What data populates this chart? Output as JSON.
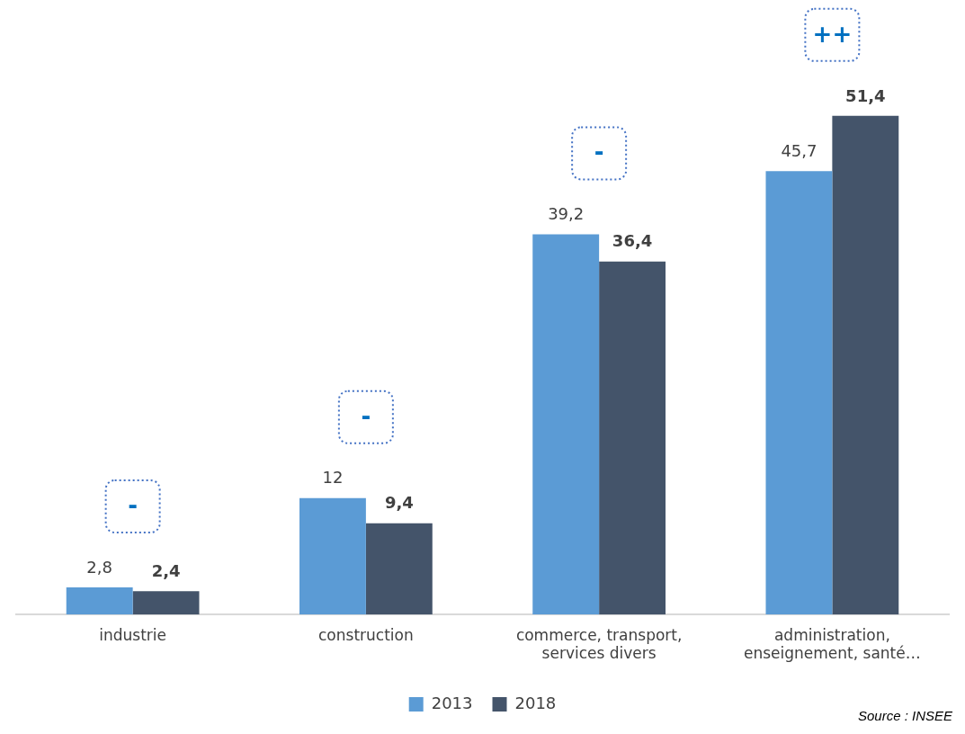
{
  "chart_data": {
    "type": "bar",
    "categories": [
      "industrie",
      "construction",
      "commerce, transport, services divers",
      "administration, enseignement, santé…"
    ],
    "series": [
      {
        "name": "2013",
        "color": "#5b9bd5",
        "values": [
          2.8,
          12,
          39.2,
          45.7
        ],
        "value_labels": [
          "2,8",
          "12",
          "39,2",
          "45,7"
        ]
      },
      {
        "name": "2018",
        "color": "#44546a",
        "values": [
          2.4,
          9.4,
          36.4,
          51.4
        ],
        "value_labels": [
          "2,4",
          "9,4",
          "36,4",
          "51,4"
        ]
      }
    ],
    "annotations": [
      "-",
      "-",
      "-",
      "++",
      "Source : INSEE"
    ],
    "legend": "bottom",
    "grid": false
  }
}
